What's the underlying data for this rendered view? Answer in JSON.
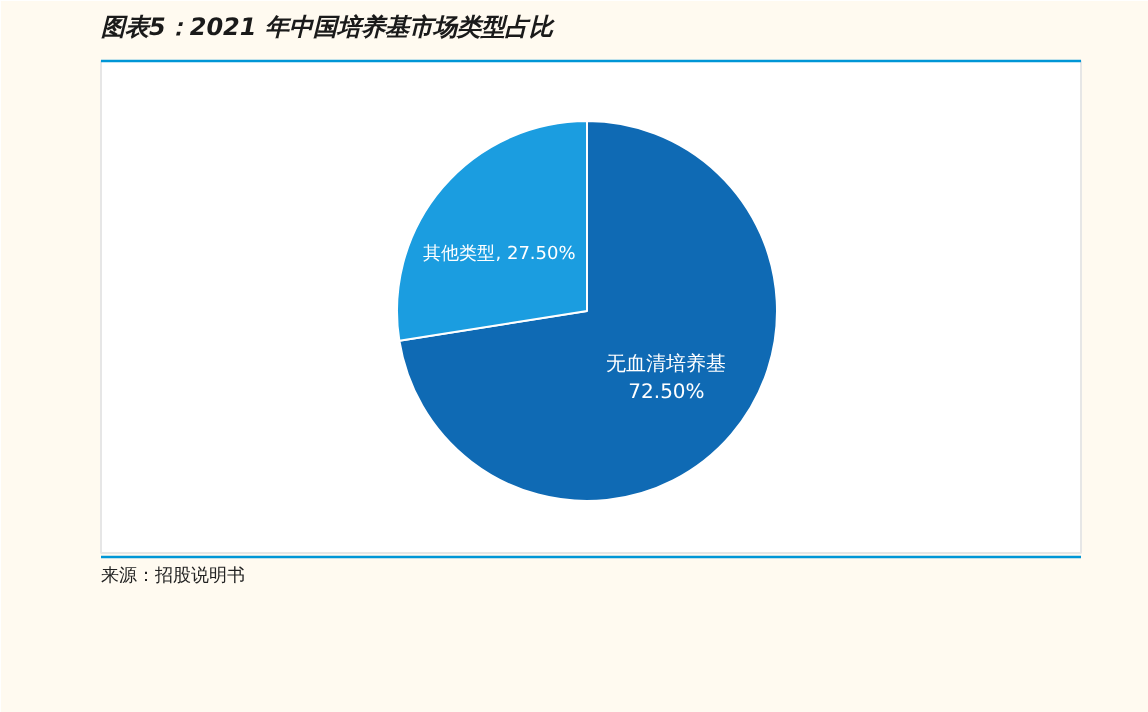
{
  "chart_data": {
    "type": "pie",
    "title": "图表5：2021 年中国培养基市场类型占比",
    "categories": [
      "无血清培养基",
      "其他类型"
    ],
    "values": [
      72.5,
      27.5
    ],
    "colors": [
      "#0f6ab4",
      "#1b9de0"
    ],
    "value_labels": [
      "72.50%",
      "27.50%"
    ],
    "legend": false,
    "annotations": [
      "来源：招股说明书"
    ]
  }
}
